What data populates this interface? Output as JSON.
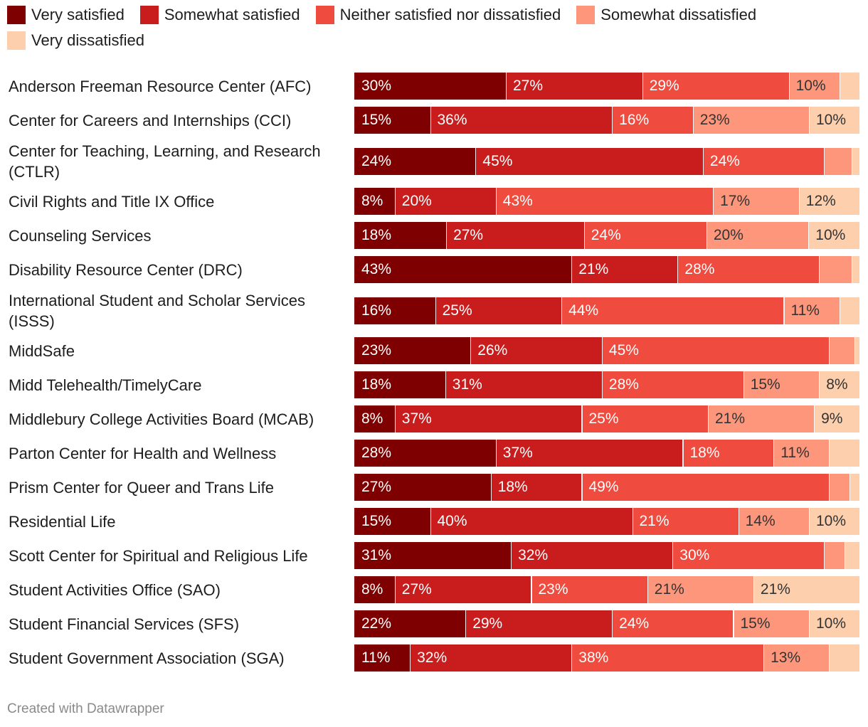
{
  "chart_data": {
    "type": "bar",
    "orientation": "horizontal",
    "stacked": "100%",
    "legend_position": "top-left",
    "series": [
      {
        "name": "Very satisfied",
        "color": "#7f0000",
        "label_color": "#ffffff"
      },
      {
        "name": "Somewhat satisfied",
        "color": "#c91d1d",
        "label_color": "#ffffff"
      },
      {
        "name": "Neither satisfied nor dissatisfied",
        "color": "#ef4b3e",
        "label_color": "#ffffff"
      },
      {
        "name": "Somewhat dissatisfied",
        "color": "#fd967b",
        "label_color": "#333333"
      },
      {
        "name": "Very dissatisfied",
        "color": "#fdcfad",
        "label_color": "#333333"
      }
    ],
    "categories": [
      {
        "name": "Anderson Freeman Resource Center (AFC)",
        "values": [
          30,
          27,
          29,
          10,
          4
        ],
        "labels": [
          "30%",
          "27%",
          "29%",
          "10%",
          ""
        ]
      },
      {
        "name": "Center for Careers and Internships (CCI)",
        "values": [
          15,
          36,
          16,
          23,
          10
        ],
        "labels": [
          "15%",
          "36%",
          "16%",
          "23%",
          "10%"
        ]
      },
      {
        "name": "Center for Teaching, Learning, and Research (CTLR)",
        "values": [
          24,
          45,
          24,
          5.5,
          1.5
        ],
        "labels": [
          "24%",
          "45%",
          "24%",
          "",
          ""
        ]
      },
      {
        "name": "Civil Rights and Title IX Office",
        "values": [
          8,
          20,
          43,
          17,
          12
        ],
        "labels": [
          "8%",
          "20%",
          "43%",
          "17%",
          "12%"
        ]
      },
      {
        "name": "Counseling Services",
        "values": [
          18,
          27,
          24,
          20,
          10
        ],
        "labels": [
          "18%",
          "27%",
          "24%",
          "20%",
          "10%"
        ]
      },
      {
        "name": "Disability Resource Center (DRC)",
        "values": [
          43,
          21,
          28,
          6.5,
          1.5
        ],
        "labels": [
          "43%",
          "21%",
          "28%",
          "",
          ""
        ]
      },
      {
        "name": "International Student and Scholar Services (ISSS)",
        "values": [
          16,
          25,
          44,
          11,
          4
        ],
        "labels": [
          "16%",
          "25%",
          "44%",
          "11%",
          ""
        ]
      },
      {
        "name": "MiddSafe",
        "values": [
          23,
          26,
          45,
          5,
          1
        ],
        "labels": [
          "23%",
          "26%",
          "45%",
          "",
          ""
        ]
      },
      {
        "name": "Midd Telehealth/TimelyCare",
        "values": [
          18,
          31,
          28,
          15,
          8
        ],
        "labels": [
          "18%",
          "31%",
          "28%",
          "15%",
          "8%"
        ]
      },
      {
        "name": "Middlebury College Activities Board (MCAB)",
        "values": [
          8,
          37,
          25,
          21,
          9
        ],
        "labels": [
          "8%",
          "37%",
          "25%",
          "21%",
          "9%"
        ]
      },
      {
        "name": "Parton Center for Health and Wellness",
        "values": [
          28,
          37,
          18,
          11,
          6
        ],
        "labels": [
          "28%",
          "37%",
          "18%",
          "11%",
          ""
        ]
      },
      {
        "name": "Prism Center for Queer and Trans Life",
        "values": [
          27,
          18,
          49,
          4,
          2
        ],
        "labels": [
          "27%",
          "18%",
          "49%",
          "",
          ""
        ]
      },
      {
        "name": "Residential Life",
        "values": [
          15,
          40,
          21,
          14,
          10
        ],
        "labels": [
          "15%",
          "40%",
          "21%",
          "14%",
          "10%"
        ]
      },
      {
        "name": "Scott Center for Spiritual and Religious Life",
        "values": [
          31,
          32,
          30,
          4,
          3
        ],
        "labels": [
          "31%",
          "32%",
          "30%",
          "",
          ""
        ]
      },
      {
        "name": "Student Activities Office (SAO)",
        "values": [
          8,
          27,
          23,
          21,
          21
        ],
        "labels": [
          "8%",
          "27%",
          "23%",
          "21%",
          "21%"
        ]
      },
      {
        "name": "Student Financial Services (SFS)",
        "values": [
          22,
          29,
          24,
          15,
          10
        ],
        "labels": [
          "22%",
          "29%",
          "24%",
          "15%",
          "10%"
        ]
      },
      {
        "name": "Student Government Association (SGA)",
        "values": [
          11,
          32,
          38,
          13,
          6
        ],
        "labels": [
          "11%",
          "32%",
          "38%",
          "13%",
          ""
        ]
      }
    ],
    "xlim": [
      0,
      100
    ]
  },
  "footer": "Created with Datawrapper"
}
